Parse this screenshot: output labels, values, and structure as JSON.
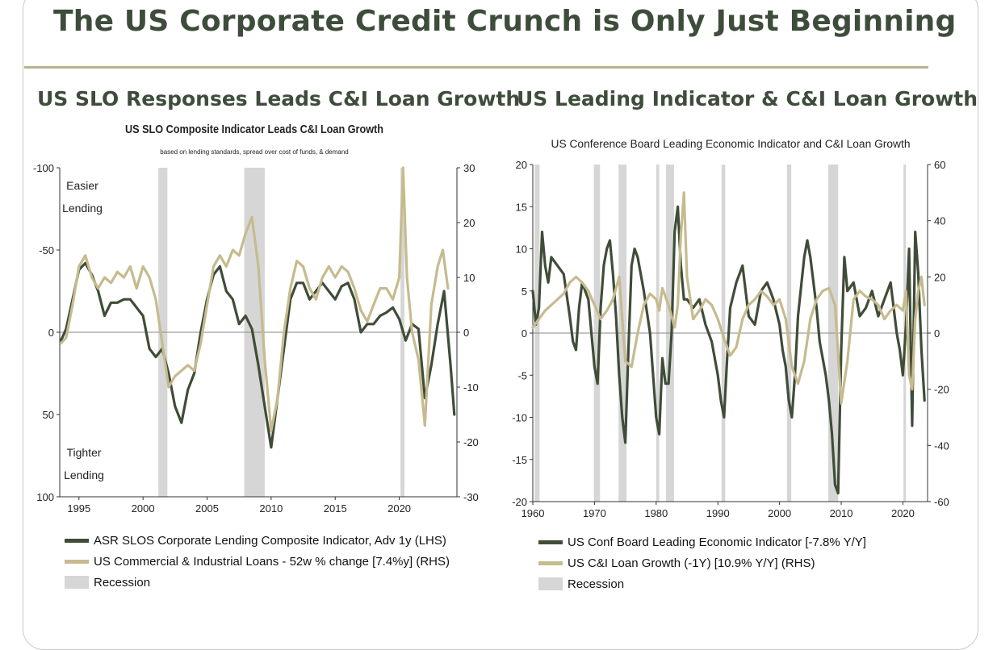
{
  "page": {
    "title": "The US Corporate Credit Crunch is Only Just Beginning"
  },
  "colors": {
    "dark_series": "#3f4d38",
    "light_series": "#c6bb8f",
    "recession": "#d6d6d6",
    "title": "#3e4d3b",
    "rule": "#b9b28b"
  },
  "chart_data": [
    {
      "type": "line",
      "panel_title": "US SLO Responses Leads C&I Loan Growth",
      "title": "US SLO Composite Indicator Leads C&I Loan Growth",
      "subtitle": "based on lending standards, spread over cost of funds, & demand",
      "annotations": [
        "Easier",
        "Lending",
        "Tighter",
        "Lending"
      ],
      "x_ticks": [
        "1995",
        "2000",
        "2005",
        "2010",
        "2015",
        "2020"
      ],
      "xlim": [
        1993.5,
        2024.5
      ],
      "left_axis": {
        "ticks": [
          "-100",
          "-50",
          "0",
          "50",
          "100"
        ],
        "ylim": [
          -100,
          100
        ],
        "inverted": true
      },
      "right_axis": {
        "ticks": [
          "30",
          "20",
          "10",
          "0",
          "-10",
          "-20",
          "-30"
        ],
        "ylim": [
          -30,
          30
        ]
      },
      "recessions": [
        [
          2001.2,
          2001.9
        ],
        [
          2007.9,
          2009.5
        ],
        [
          2020.1,
          2020.4
        ]
      ],
      "series": [
        {
          "name": "ASR SLOS Corporate Lending Composite Indicator, Adv 1y (LHS)",
          "axis": "left",
          "color": "dark",
          "x": [
            1993.6,
            1994.0,
            1994.5,
            1995.0,
            1995.5,
            1996.0,
            1996.5,
            1997.0,
            1997.5,
            1998.0,
            1998.5,
            1999.0,
            1999.5,
            2000.0,
            2000.5,
            2001.0,
            2001.5,
            2002.0,
            2002.5,
            2003.0,
            2003.5,
            2004.0,
            2004.5,
            2005.0,
            2005.5,
            2006.0,
            2006.5,
            2007.0,
            2007.5,
            2008.0,
            2008.5,
            2009.0,
            2009.5,
            2010.0,
            2010.5,
            2011.0,
            2011.5,
            2012.0,
            2012.5,
            2013.0,
            2013.5,
            2014.0,
            2014.5,
            2015.0,
            2015.5,
            2016.0,
            2016.5,
            2017.0,
            2017.5,
            2018.0,
            2018.5,
            2019.0,
            2019.5,
            2020.0,
            2020.5,
            2021.0,
            2021.5,
            2022.0,
            2022.5,
            2023.0,
            2023.5,
            2024.0,
            2024.3
          ],
          "y": [
            5,
            -2,
            -20,
            -38,
            -42,
            -35,
            -25,
            -10,
            -18,
            -18,
            -20,
            -20,
            -15,
            -10,
            10,
            15,
            10,
            25,
            45,
            55,
            35,
            25,
            0,
            -20,
            -35,
            -40,
            -25,
            -20,
            -5,
            -10,
            -2,
            20,
            45,
            70,
            40,
            10,
            -20,
            -30,
            -30,
            -20,
            -25,
            -30,
            -25,
            -20,
            -28,
            -30,
            -20,
            0,
            -5,
            -5,
            -10,
            -12,
            -15,
            -8,
            5,
            -5,
            -2,
            40,
            20,
            -5,
            -25,
            20,
            50
          ]
        },
        {
          "name": "US Commercial & Industrial Loans - 52w % change [7.4%y] (RHS)",
          "axis": "right",
          "color": "light",
          "x": [
            1993.6,
            1994.0,
            1994.5,
            1995.0,
            1995.5,
            1996.0,
            1996.5,
            1997.0,
            1997.5,
            1998.0,
            1998.5,
            1999.0,
            1999.5,
            2000.0,
            2000.5,
            2001.0,
            2001.5,
            2002.0,
            2002.5,
            2003.0,
            2003.5,
            2004.0,
            2004.5,
            2005.0,
            2005.5,
            2006.0,
            2006.5,
            2007.0,
            2007.5,
            2008.0,
            2008.5,
            2009.0,
            2009.5,
            2010.0,
            2010.5,
            2011.0,
            2011.5,
            2012.0,
            2012.5,
            2013.0,
            2013.5,
            2014.0,
            2014.5,
            2015.0,
            2015.5,
            2016.0,
            2016.5,
            2017.0,
            2017.5,
            2018.0,
            2018.5,
            2019.0,
            2019.5,
            2020.0,
            2020.3,
            2020.6,
            2021.0,
            2021.5,
            2022.0,
            2022.5,
            2023.0,
            2023.4,
            2023.8
          ],
          "y": [
            -2,
            -1,
            5,
            12,
            14,
            10,
            8,
            10,
            9,
            11,
            10,
            12,
            8,
            12,
            10,
            6,
            -2,
            -10,
            -8,
            -7,
            -6,
            -7,
            -2,
            5,
            12,
            14,
            12,
            15,
            14,
            18,
            21,
            12,
            -5,
            -18,
            -12,
            0,
            8,
            13,
            12,
            8,
            6,
            10,
            12,
            10,
            12,
            11,
            8,
            4,
            2,
            5,
            8,
            8,
            6,
            10,
            30,
            10,
            0,
            -5,
            -17,
            5,
            12,
            15,
            8
          ]
        }
      ],
      "legend": [
        {
          "label": "ASR SLOS Corporate Lending Composite Indicator, Adv 1y (LHS)",
          "kind": "line",
          "color": "dark"
        },
        {
          "label": "US Commercial & Industrial Loans - 52w % change [7.4%y] (RHS)",
          "kind": "line",
          "color": "light"
        },
        {
          "label": "Recession",
          "kind": "box",
          "color": "recession"
        }
      ]
    },
    {
      "type": "line",
      "panel_title": "US Leading Indicator & C&I Loan Growth",
      "title": "US Conference Board Leading Economic Indicator and C&I Loan Growth",
      "x_ticks": [
        "1960",
        "1970",
        "1980",
        "1990",
        "2000",
        "2010",
        "2020"
      ],
      "xlim": [
        1960,
        2024
      ],
      "left_axis": {
        "ticks": [
          "20",
          "15",
          "10",
          "5",
          "0",
          "-5",
          "-10",
          "-15",
          "-20"
        ],
        "ylim": [
          -20,
          20
        ]
      },
      "right_axis": {
        "ticks": [
          "60",
          "40",
          "20",
          "0",
          "-20",
          "-40",
          "-60"
        ],
        "ylim": [
          -60,
          60
        ]
      },
      "recessions": [
        [
          1960.3,
          1961.1
        ],
        [
          1969.9,
          1970.9
        ],
        [
          1973.9,
          1975.2
        ],
        [
          1980.0,
          1980.5
        ],
        [
          1981.6,
          1982.9
        ],
        [
          1990.6,
          1991.2
        ],
        [
          2001.2,
          2001.9
        ],
        [
          2007.9,
          2009.5
        ],
        [
          2020.1,
          2020.4
        ]
      ],
      "series": [
        {
          "name": "US Conf Board Leading Economic Indicator [-7.8% Y/Y]",
          "axis": "left",
          "color": "dark",
          "x": [
            1960.0,
            1960.5,
            1961.0,
            1961.5,
            1962.0,
            1962.5,
            1963.0,
            1964.0,
            1965.0,
            1966.0,
            1966.5,
            1967.0,
            1967.5,
            1968.0,
            1968.5,
            1969.0,
            1969.5,
            1970.0,
            1970.5,
            1971.0,
            1971.5,
            1972.0,
            1972.5,
            1973.0,
            1973.5,
            1974.0,
            1974.5,
            1975.0,
            1975.5,
            1976.0,
            1976.5,
            1977.0,
            1978.0,
            1979.0,
            1979.5,
            1980.0,
            1980.5,
            1981.0,
            1981.5,
            1982.0,
            1982.5,
            1983.0,
            1983.5,
            1984.0,
            1984.5,
            1985.0,
            1986.0,
            1987.0,
            1988.0,
            1989.0,
            1989.5,
            1990.0,
            1990.5,
            1991.0,
            1991.5,
            1992.0,
            1993.0,
            1994.0,
            1995.0,
            1996.0,
            1997.0,
            1998.0,
            1999.0,
            2000.0,
            2000.5,
            2001.0,
            2001.5,
            2002.0,
            2002.5,
            2003.0,
            2004.0,
            2004.5,
            2005.0,
            2006.0,
            2006.5,
            2007.0,
            2007.5,
            2008.0,
            2008.5,
            2009.0,
            2009.5,
            2010.0,
            2010.5,
            2011.0,
            2012.0,
            2013.0,
            2014.0,
            2015.0,
            2016.0,
            2017.0,
            2018.0,
            2018.5,
            2019.0,
            2019.5,
            2020.0,
            2020.5,
            2021.0,
            2021.5,
            2022.0,
            2022.5,
            2023.0,
            2023.5
          ],
          "y": [
            5,
            1,
            3,
            12,
            8,
            6,
            9,
            8,
            7,
            2,
            -1,
            -2,
            3,
            6,
            5,
            4,
            0,
            -4,
            -6,
            3,
            8,
            10,
            11,
            7,
            2,
            -5,
            -10,
            -13,
            -2,
            8,
            10,
            9,
            5,
            0,
            -5,
            -10,
            -12,
            -3,
            -6,
            -6,
            0,
            12,
            15,
            8,
            4,
            4,
            3,
            4,
            1,
            -1,
            -3,
            -5,
            -8,
            -10,
            -3,
            3,
            6,
            8,
            2,
            1,
            5,
            6,
            4,
            1,
            -2,
            -4,
            -8,
            -10,
            -5,
            2,
            9,
            11,
            9,
            3,
            -1,
            -3,
            -5,
            -8,
            -12,
            -18,
            -19,
            -2,
            9,
            5,
            6,
            2,
            3,
            5,
            2,
            4,
            6,
            3,
            0,
            -2,
            -5,
            1,
            10,
            -11,
            12,
            7,
            -2,
            -8
          ]
        },
        {
          "name": "US C&I Loan Growth (-1Y)  [10.9% Y/Y] (RHS)",
          "axis": "right",
          "color": "light",
          "x": [
            1960.0,
            1961.0,
            1962.0,
            1963.0,
            1964.0,
            1965.0,
            1966.0,
            1967.0,
            1968.0,
            1969.0,
            1970.0,
            1971.0,
            1972.0,
            1973.0,
            1974.0,
            1975.0,
            1976.0,
            1977.0,
            1978.0,
            1979.0,
            1980.0,
            1980.5,
            1981.0,
            1982.0,
            1983.0,
            1983.5,
            1984.0,
            1984.5,
            1985.0,
            1986.0,
            1987.0,
            1988.0,
            1989.0,
            1990.0,
            1991.0,
            1992.0,
            1993.0,
            1994.0,
            1995.0,
            1996.0,
            1997.0,
            1998.0,
            1999.0,
            2000.0,
            2001.0,
            2002.0,
            2003.0,
            2004.0,
            2005.0,
            2006.0,
            2007.0,
            2008.0,
            2009.0,
            2010.0,
            2011.0,
            2012.0,
            2013.0,
            2014.0,
            2015.0,
            2016.0,
            2017.0,
            2018.0,
            2019.0,
            2020.0,
            2020.5,
            2021.0,
            2021.5,
            2022.0,
            2022.5,
            2023.0,
            2023.5
          ],
          "y": [
            2,
            5,
            8,
            10,
            12,
            14,
            18,
            20,
            18,
            15,
            10,
            5,
            8,
            12,
            20,
            -10,
            -12,
            0,
            10,
            14,
            12,
            8,
            16,
            10,
            2,
            10,
            35,
            50,
            20,
            5,
            8,
            12,
            10,
            5,
            -2,
            -8,
            -5,
            5,
            10,
            12,
            15,
            13,
            10,
            12,
            5,
            -12,
            -18,
            -10,
            5,
            12,
            15,
            16,
            10,
            -25,
            -10,
            12,
            15,
            13,
            12,
            10,
            5,
            8,
            10,
            8,
            15,
            -15,
            -20,
            5,
            15,
            20,
            10
          ]
        }
      ],
      "legend": [
        {
          "label": "US Conf Board Leading Economic Indicator [-7.8% Y/Y]",
          "kind": "line",
          "color": "dark"
        },
        {
          "label": "US C&I Loan Growth (-1Y)  [10.9% Y/Y] (RHS)",
          "kind": "line",
          "color": "light"
        },
        {
          "label": "Recession",
          "kind": "box",
          "color": "recession"
        }
      ]
    }
  ]
}
